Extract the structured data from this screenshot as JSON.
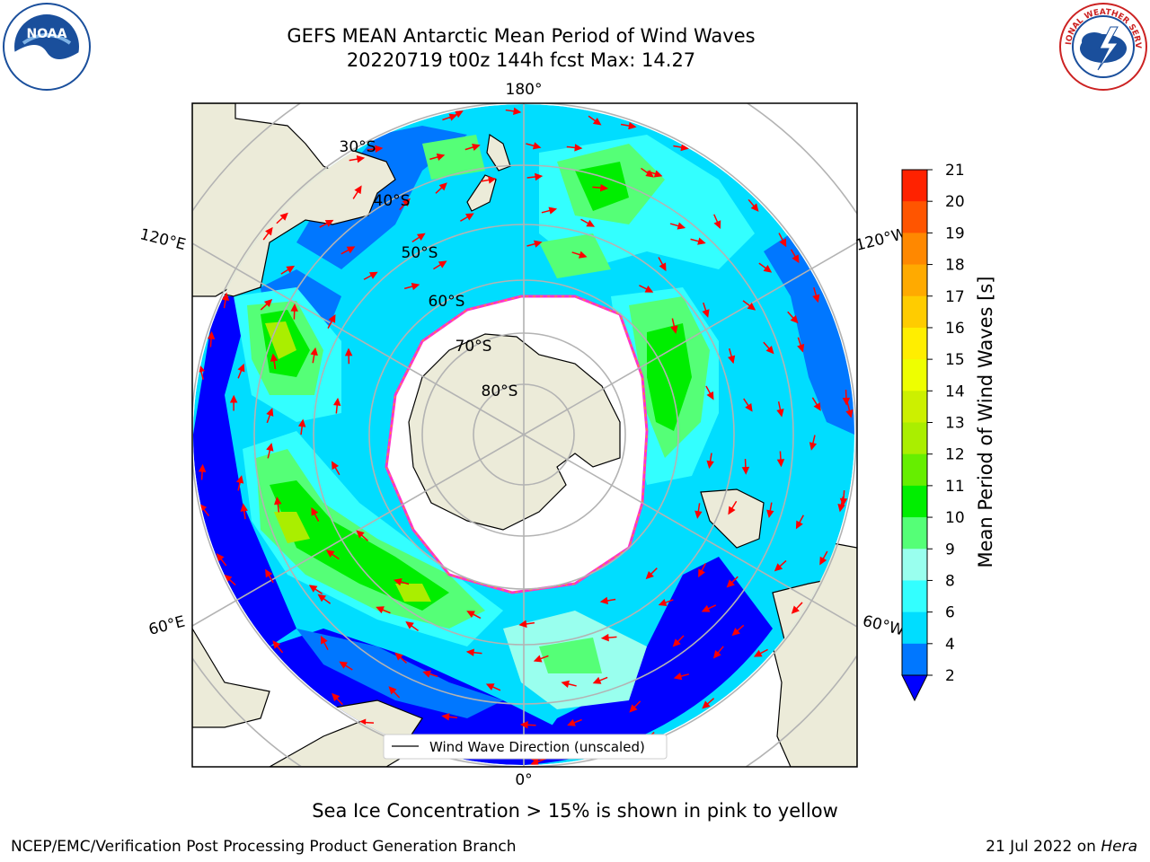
{
  "title": {
    "line1": "GEFS MEAN Antarctic Mean Period of Wind Waves",
    "line2": "20220719 t00z 144h fcst   Max: 14.27"
  },
  "map": {
    "projection": "south-polar-stereographic",
    "longitude_labels": {
      "top": "180°",
      "bottom": "0°",
      "left_upper": "120°E",
      "left_lower": "60°E",
      "right_upper": "120°W",
      "right_lower": "60°W"
    },
    "latitude_labels": [
      "30°S",
      "40°S",
      "50°S",
      "60°S",
      "70°S",
      "80°S"
    ],
    "legend": "Wind Wave Direction (unscaled)",
    "colors": {
      "land": "#ecebd9",
      "ice_free_open": "#ffffff",
      "sea_ice_edge": [
        "#ff33cc",
        "#ffaa00",
        "#ffff66"
      ]
    }
  },
  "colorbar": {
    "label": "Mean Period of Wind Waves [s]",
    "ticks": [
      "2",
      "4",
      "6",
      "8",
      "9",
      "10",
      "11",
      "12",
      "13",
      "14",
      "15",
      "16",
      "17",
      "18",
      "19",
      "20",
      "21"
    ],
    "colors": [
      "#0000ff",
      "#0077ff",
      "#00ddff",
      "#33ffff",
      "#99ffee",
      "#55ff77",
      "#00ee00",
      "#66ee00",
      "#aaee00",
      "#ccf000",
      "#eeff00",
      "#ffee00",
      "#ffcc00",
      "#ffaa00",
      "#ff8800",
      "#ff5500",
      "#ff2200",
      "#ff0000"
    ]
  },
  "footer": {
    "note": "Sea Ice Concentration > 15% is shown in pink to yellow",
    "left": "NCEP/EMC/Verification Post Processing Product Generation Branch",
    "right_date": "21 Jul 2022 on ",
    "right_system": "Hera"
  }
}
